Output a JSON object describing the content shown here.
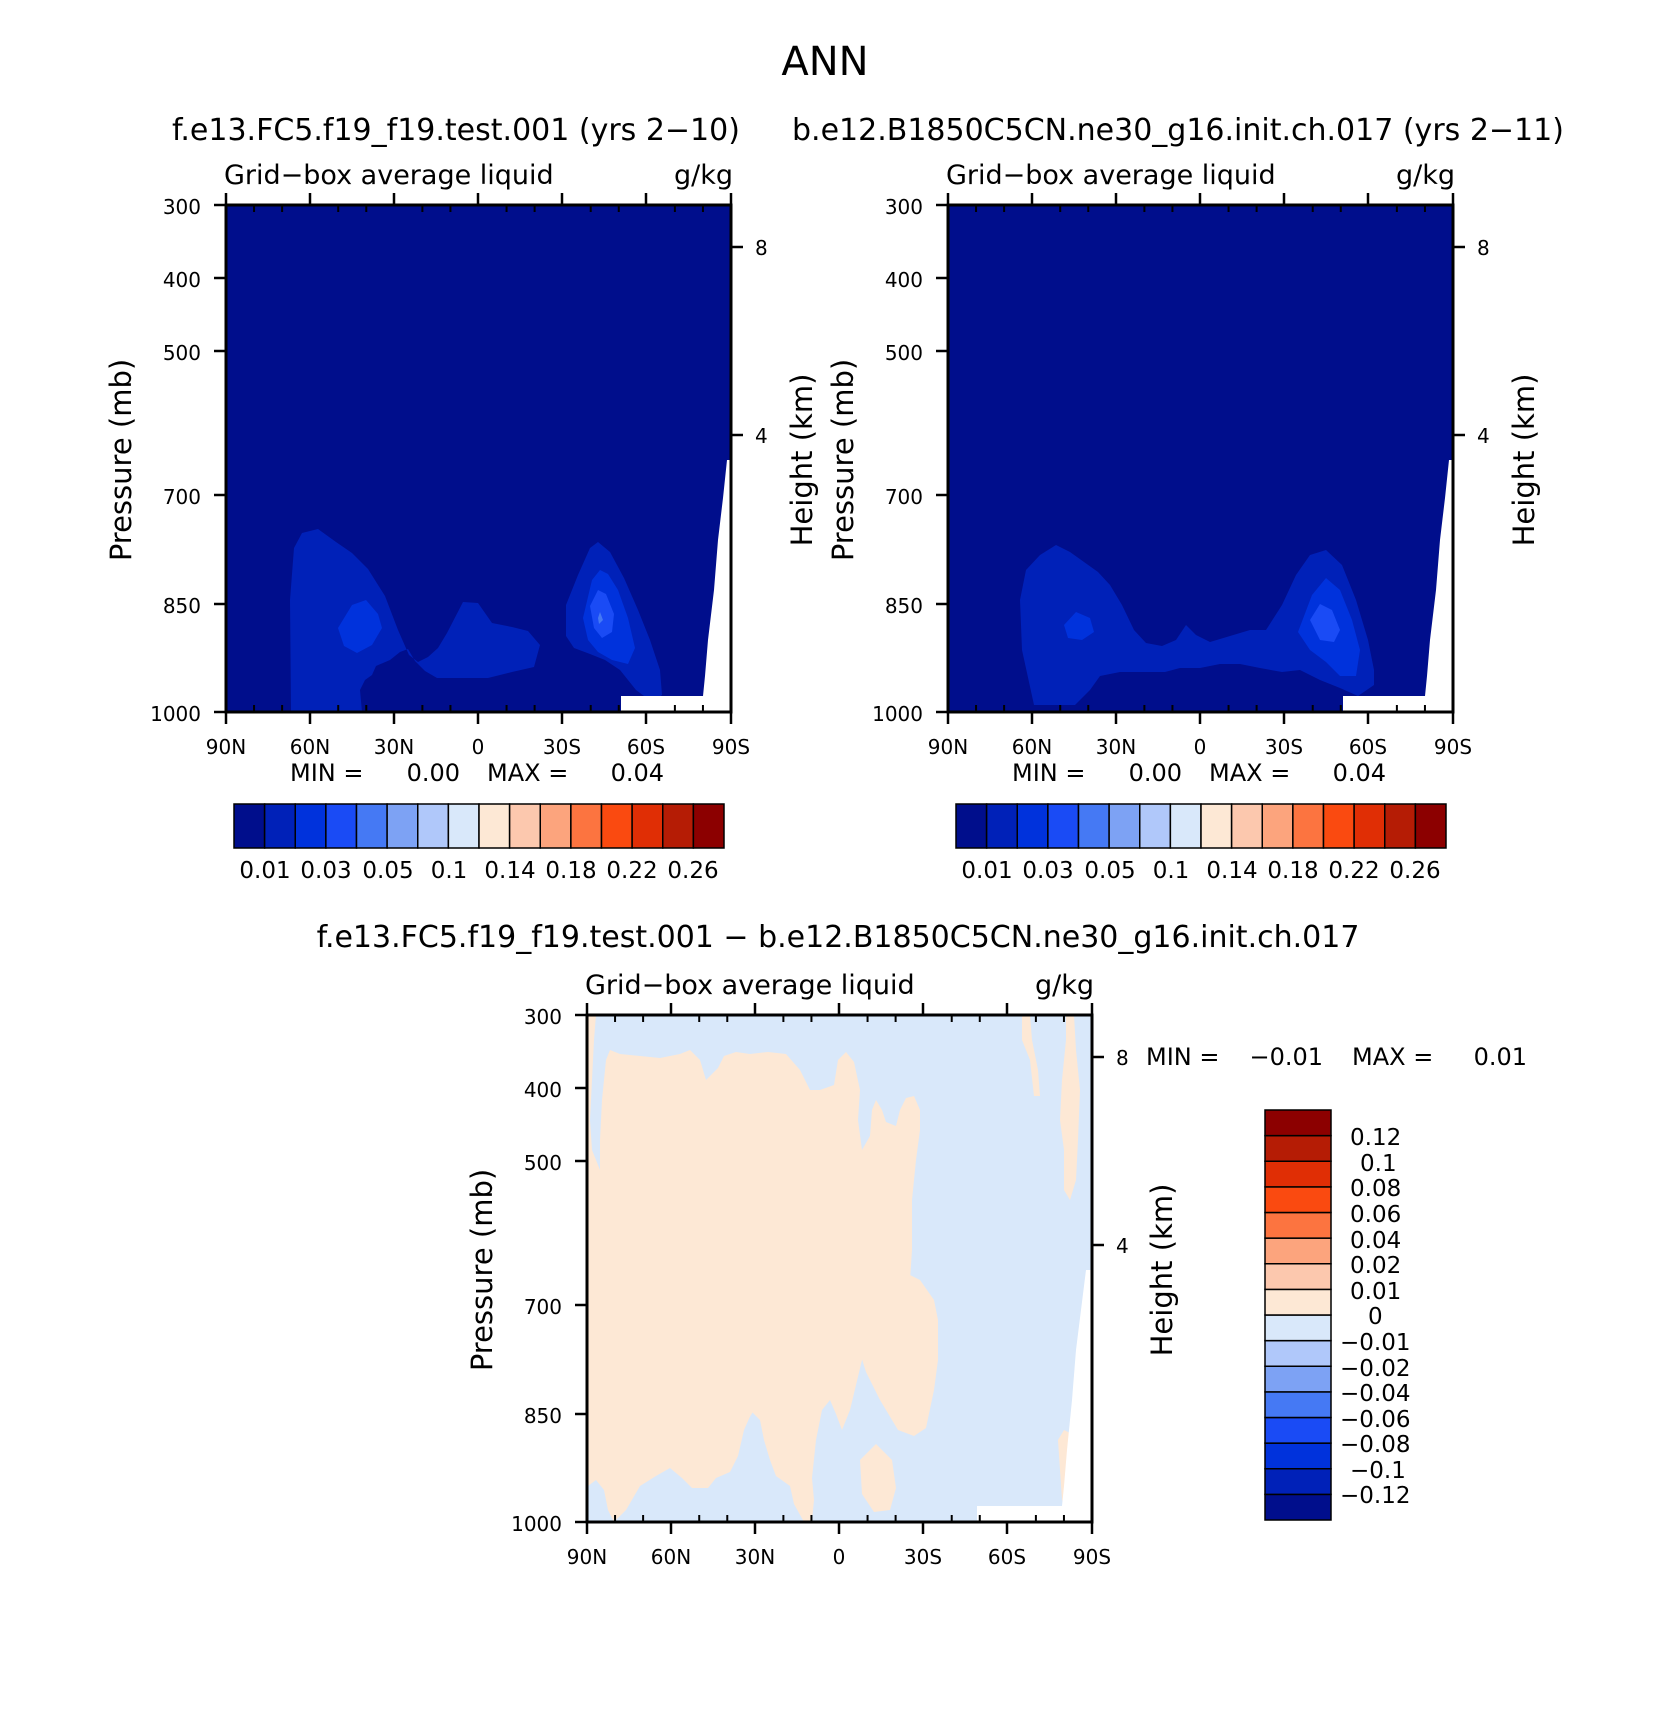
{
  "page_title": "ANN",
  "panels": [
    {
      "title": "f.e13.FC5.f19_f19.test.001 (yrs 2−10)",
      "left_label": "Grid−box average liquid",
      "right_label": "g/kg",
      "ylabel": "Pressure (mb)",
      "ylabel_right": "Height (km)",
      "ytick_labels": [
        "300",
        "400",
        "500",
        "700",
        "850",
        "1000"
      ],
      "height_tick_labels": [
        "8",
        "4"
      ],
      "xtick_labels": [
        "90N",
        "60N",
        "30N",
        "0",
        "30S",
        "60S",
        "90S"
      ],
      "min_label": "MIN =",
      "min_value": "0.00",
      "max_label": "MAX =",
      "max_value": "0.04",
      "colorbar_labels": [
        "0.01",
        "0.03",
        "0.05",
        "0.1",
        "0.14",
        "0.18",
        "0.22",
        "0.26"
      ]
    },
    {
      "title": "b.e12.B1850C5CN.ne30_g16.init.ch.017 (yrs 2−11)",
      "left_label": "Grid−box average liquid",
      "right_label": "g/kg",
      "ylabel": "Pressure (mb)",
      "ylabel_right": "Height (km)",
      "ytick_labels": [
        "300",
        "400",
        "500",
        "700",
        "850",
        "1000"
      ],
      "height_tick_labels": [
        "8",
        "4"
      ],
      "xtick_labels": [
        "90N",
        "60N",
        "30N",
        "0",
        "30S",
        "60S",
        "90S"
      ],
      "min_label": "MIN =",
      "min_value": "0.00",
      "max_label": "MAX =",
      "max_value": "0.04",
      "colorbar_labels": [
        "0.01",
        "0.03",
        "0.05",
        "0.1",
        "0.14",
        "0.18",
        "0.22",
        "0.26"
      ]
    },
    {
      "title": "f.e13.FC5.f19_f19.test.001 − b.e12.B1850C5CN.ne30_g16.init.ch.017",
      "left_label": "Grid−box average liquid",
      "right_label": "g/kg",
      "ylabel": "Pressure (mb)",
      "ylabel_right": "Height (km)",
      "ytick_labels": [
        "300",
        "400",
        "500",
        "700",
        "850",
        "1000"
      ],
      "height_tick_labels": [
        "8",
        "4"
      ],
      "xtick_labels": [
        "90N",
        "60N",
        "30N",
        "0",
        "30S",
        "60S",
        "90S"
      ],
      "min_label": "MIN =",
      "min_value": "−0.01",
      "max_label": "MAX =",
      "max_value": "0.01",
      "colorbar_labels": [
        "0.12",
        "0.1",
        "0.08",
        "0.06",
        "0.04",
        "0.02",
        "0.01",
        "0",
        "−0.01",
        "−0.02",
        "−0.04",
        "−0.06",
        "−0.08",
        "−0.1",
        "−0.12"
      ]
    }
  ],
  "chart_data": [
    {
      "type": "heatmap",
      "title": "f.e13.FC5.f19_f19.test.001 (yrs 2−10)",
      "subtitle": "Grid−box average liquid",
      "units": "g/kg",
      "xlabel": "",
      "ylabel": "Pressure (mb)",
      "ylabel_right": "Height (km)",
      "x_ticks": [
        "90N",
        "60N",
        "30N",
        "0",
        "30S",
        "60S",
        "90S"
      ],
      "y_ticks_mb": [
        300,
        400,
        500,
        700,
        850,
        1000
      ],
      "right_ticks_km": [
        8,
        4
      ],
      "ylim": [
        1000,
        300
      ],
      "y_scale": "log",
      "min": 0.0,
      "max": 0.04,
      "levels": [
        0.01,
        0.02,
        0.03,
        0.04,
        0.05,
        0.07,
        0.1,
        0.12,
        0.14,
        0.16,
        0.18,
        0.2,
        0.22,
        0.24,
        0.26
      ],
      "colors": [
        "#000e8c",
        "#0021b8",
        "#0032dc",
        "#1a4bf5",
        "#4579f4",
        "#7da2f4",
        "#b0c8fa",
        "#d9e8fa",
        "#fde8d5",
        "#fcc8ae",
        "#fca47d",
        "#fc7440",
        "#fa4a10",
        "#e02e05",
        "#b51c05",
        "#8c0000"
      ]
    },
    {
      "type": "heatmap",
      "title": "b.e12.B1850C5CN.ne30_g16.init.ch.017 (yrs 2−11)",
      "subtitle": "Grid−box average liquid",
      "units": "g/kg",
      "xlabel": "",
      "ylabel": "Pressure (mb)",
      "ylabel_right": "Height (km)",
      "x_ticks": [
        "90N",
        "60N",
        "30N",
        "0",
        "30S",
        "60S",
        "90S"
      ],
      "y_ticks_mb": [
        300,
        400,
        500,
        700,
        850,
        1000
      ],
      "right_ticks_km": [
        8,
        4
      ],
      "ylim": [
        1000,
        300
      ],
      "y_scale": "log",
      "min": 0.0,
      "max": 0.04,
      "levels": [
        0.01,
        0.02,
        0.03,
        0.04,
        0.05,
        0.07,
        0.1,
        0.12,
        0.14,
        0.16,
        0.18,
        0.2,
        0.22,
        0.24,
        0.26
      ],
      "colors": [
        "#000e8c",
        "#0021b8",
        "#0032dc",
        "#1a4bf5",
        "#4579f4",
        "#7da2f4",
        "#b0c8fa",
        "#d9e8fa",
        "#fde8d5",
        "#fcc8ae",
        "#fca47d",
        "#fc7440",
        "#fa4a10",
        "#e02e05",
        "#b51c05",
        "#8c0000"
      ]
    },
    {
      "type": "heatmap",
      "title": "f.e13.FC5.f19_f19.test.001 − b.e12.B1850C5CN.ne30_g16.init.ch.017",
      "subtitle": "Grid−box average liquid",
      "units": "g/kg",
      "xlabel": "",
      "ylabel": "Pressure (mb)",
      "ylabel_right": "Height (km)",
      "x_ticks": [
        "90N",
        "60N",
        "30N",
        "0",
        "30S",
        "60S",
        "90S"
      ],
      "y_ticks_mb": [
        300,
        400,
        500,
        700,
        850,
        1000
      ],
      "right_ticks_km": [
        8,
        4
      ],
      "ylim": [
        1000,
        300
      ],
      "y_scale": "log",
      "min": -0.01,
      "max": 0.01,
      "levels": [
        -0.12,
        -0.1,
        -0.08,
        -0.06,
        -0.04,
        -0.02,
        -0.01,
        0,
        0.01,
        0.02,
        0.04,
        0.06,
        0.08,
        0.1,
        0.12
      ],
      "colors": [
        "#000e8c",
        "#0021b8",
        "#0032dc",
        "#1a4bf5",
        "#4579f4",
        "#7da2f4",
        "#b0c8fa",
        "#d9e8fa",
        "#fde8d5",
        "#fcc8ae",
        "#fca47d",
        "#fc7440",
        "#fa4a10",
        "#e02e05",
        "#b51c05",
        "#8c0000"
      ]
    }
  ]
}
